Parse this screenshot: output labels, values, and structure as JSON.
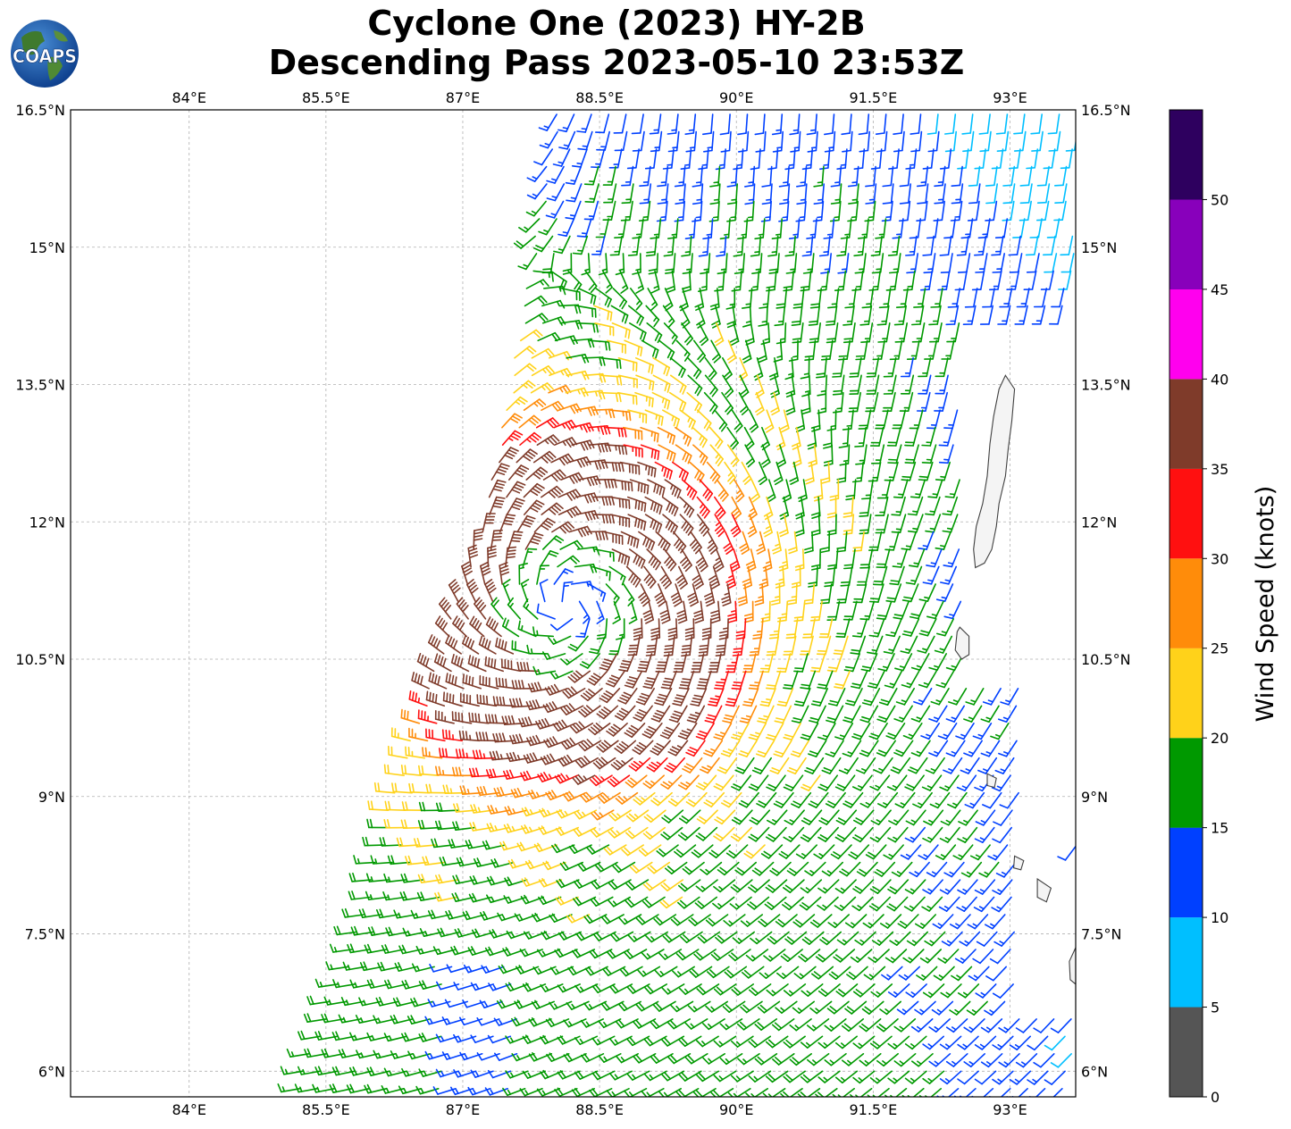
{
  "title": {
    "line1": "Cyclone One (2023) HY-2B",
    "line2": "Descending Pass 2023-05-10 23:53Z"
  },
  "logo": {
    "text": "COAPS"
  },
  "map": {
    "lon_range": [
      82.7,
      93.72
    ],
    "lat_range": [
      5.72,
      16.5
    ],
    "lon_ticks": [
      {
        "value": 84.0,
        "label": "84°E"
      },
      {
        "value": 85.5,
        "label": "85.5°E"
      },
      {
        "value": 87.0,
        "label": "87°E"
      },
      {
        "value": 88.5,
        "label": "88.5°E"
      },
      {
        "value": 90.0,
        "label": "90°E"
      },
      {
        "value": 91.5,
        "label": "91.5°E"
      },
      {
        "value": 93.0,
        "label": "93°E"
      }
    ],
    "lat_ticks": [
      {
        "value": 16.5,
        "label": "16.5°N"
      },
      {
        "value": 15.0,
        "label": "15°N"
      },
      {
        "value": 13.5,
        "label": "13.5°N"
      },
      {
        "value": 12.0,
        "label": "12°N"
      },
      {
        "value": 10.5,
        "label": "10.5°N"
      },
      {
        "value": 9.0,
        "label": "9°N"
      },
      {
        "value": 7.5,
        "label": "7.5°N"
      },
      {
        "value": 6.0,
        "label": "6°N"
      }
    ],
    "grid": true,
    "cyclone_center": {
      "lon": 88.15,
      "lat": 11.1
    },
    "swath_west_edge": [
      {
        "lat": 16.5,
        "lon": 88.0
      },
      {
        "lat": 13.5,
        "lon": 87.5
      },
      {
        "lat": 12.0,
        "lon": 87.2
      },
      {
        "lat": 10.5,
        "lon": 86.7
      },
      {
        "lat": 9.0,
        "lon": 86.2
      },
      {
        "lat": 7.5,
        "lon": 85.8
      },
      {
        "lat": 5.72,
        "lon": 85.1
      }
    ],
    "swath_gaps": [
      {
        "lon_min": 92.5,
        "lon_max": 93.72,
        "lat_min": 10.3,
        "lat_max": 14.3
      },
      {
        "lon_min": 93.1,
        "lon_max": 93.72,
        "lat_min": 6.6,
        "lat_max": 10.3
      }
    ],
    "coastlines": {
      "andaman_islands": [
        [
          92.95,
          13.6
        ],
        [
          93.05,
          13.45
        ],
        [
          93.02,
          13.1
        ],
        [
          92.98,
          12.8
        ],
        [
          92.95,
          12.5
        ],
        [
          92.88,
          12.2
        ],
        [
          92.85,
          11.95
        ],
        [
          92.8,
          11.7
        ],
        [
          92.72,
          11.55
        ],
        [
          92.62,
          11.5
        ],
        [
          92.6,
          11.7
        ],
        [
          92.63,
          11.95
        ],
        [
          92.7,
          12.2
        ],
        [
          92.75,
          12.5
        ],
        [
          92.78,
          12.85
        ],
        [
          92.82,
          13.15
        ],
        [
          92.88,
          13.45
        ],
        [
          92.95,
          13.6
        ]
      ],
      "little_andaman": [
        [
          92.45,
          10.85
        ],
        [
          92.55,
          10.75
        ],
        [
          92.55,
          10.55
        ],
        [
          92.47,
          10.5
        ],
        [
          92.4,
          10.6
        ],
        [
          92.42,
          10.8
        ],
        [
          92.45,
          10.85
        ]
      ],
      "car_nicobar": [
        [
          92.75,
          9.25
        ],
        [
          92.85,
          9.2
        ],
        [
          92.83,
          9.1
        ],
        [
          92.75,
          9.12
        ],
        [
          92.75,
          9.25
        ]
      ],
      "nicobar_small_1": [
        [
          93.05,
          8.35
        ],
        [
          93.15,
          8.3
        ],
        [
          93.12,
          8.2
        ],
        [
          93.04,
          8.22
        ],
        [
          93.05,
          8.35
        ]
      ],
      "nicobar_small_2": [
        [
          93.3,
          8.1
        ],
        [
          93.45,
          8.0
        ],
        [
          93.4,
          7.85
        ],
        [
          93.3,
          7.9
        ],
        [
          93.3,
          8.1
        ]
      ],
      "great_nicobar": [
        [
          93.65,
          7.2
        ],
        [
          93.72,
          7.35
        ],
        [
          93.72,
          6.95
        ],
        [
          93.66,
          7.0
        ],
        [
          93.65,
          7.2
        ]
      ]
    },
    "speed_bins_knots": [
      0,
      5,
      10,
      15,
      20,
      25,
      30,
      35,
      40,
      45,
      50,
      55
    ],
    "bin_colors": [
      "#555555",
      "#00bfff",
      "#0040ff",
      "#009900",
      "#ffd21a",
      "#ff8c0a",
      "#ff1010",
      "#7f3b2a",
      "#ff00ee",
      "#8800bb",
      "#2e005f"
    ]
  },
  "colorbar": {
    "label": "Wind Speed (knots)",
    "ticks": [
      "0",
      "5",
      "10",
      "15",
      "20",
      "25",
      "30",
      "35",
      "40",
      "45",
      "50"
    ]
  }
}
